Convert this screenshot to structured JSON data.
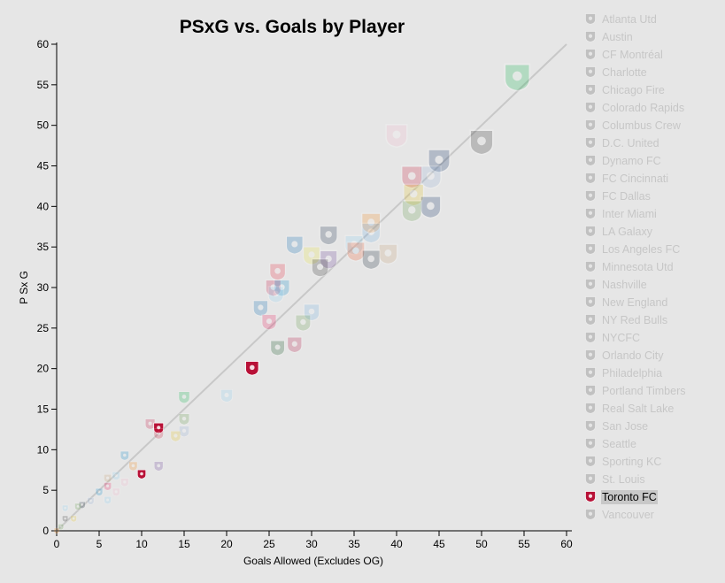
{
  "chart_data": {
    "type": "scatter",
    "title": "PSxG vs. Goals by Player",
    "xlabel": "Goals Allowed (Excludes OG)",
    "ylabel": "P Sx G",
    "xlim": [
      0,
      60
    ],
    "ylim": [
      0,
      60
    ],
    "xticks": [
      0,
      5,
      10,
      15,
      20,
      25,
      30,
      35,
      40,
      45,
      50,
      55,
      60
    ],
    "yticks": [
      0,
      5,
      10,
      15,
      20,
      25,
      30,
      35,
      40,
      45,
      50,
      55,
      60
    ],
    "reference_line": "y = x",
    "highlighted_team": "Toronto FC",
    "legend_position": "right",
    "legend": [
      {
        "team": "Atlanta Utd",
        "color": "#9a1a2a"
      },
      {
        "team": "Austin",
        "color": "#00b140"
      },
      {
        "team": "CF Montréal",
        "color": "#1c3f94"
      },
      {
        "team": "Charlotte",
        "color": "#0085ca"
      },
      {
        "team": "Chicago Fire",
        "color": "#c8102e"
      },
      {
        "team": "Colorado Rapids",
        "color": "#862633"
      },
      {
        "team": "Columbus Crew",
        "color": "#e8c31a"
      },
      {
        "team": "D.C. United",
        "color": "#222222"
      },
      {
        "team": "Dynamo FC",
        "color": "#f68712"
      },
      {
        "team": "FC Cincinnati",
        "color": "#f05323"
      },
      {
        "team": "FC Dallas",
        "color": "#c6093b"
      },
      {
        "team": "Inter Miami",
        "color": "#f7b5cd"
      },
      {
        "team": "LA Galaxy",
        "color": "#00245d"
      },
      {
        "team": "Los Angeles FC",
        "color": "#c39e6d"
      },
      {
        "team": "Minnesota Utd",
        "color": "#8cd2f4"
      },
      {
        "team": "Nashville",
        "color": "#ece83a"
      },
      {
        "team": "New England",
        "color": "#0a2240"
      },
      {
        "team": "NY Red Bulls",
        "color": "#ed1e36"
      },
      {
        "team": "NYCFC",
        "color": "#6cace4"
      },
      {
        "team": "Orlando City",
        "color": "#633492"
      },
      {
        "team": "Philadelphia",
        "color": "#071b2c"
      },
      {
        "team": "Portland Timbers",
        "color": "#004812"
      },
      {
        "team": "Real Salt Lake",
        "color": "#b30838"
      },
      {
        "team": "San Jose",
        "color": "#0067b1"
      },
      {
        "team": "Seattle",
        "color": "#5d9741"
      },
      {
        "team": "Sporting KC",
        "color": "#91b0d5"
      },
      {
        "team": "St. Louis",
        "color": "#ec1458"
      },
      {
        "team": "Toronto FC",
        "color": "#b81137"
      },
      {
        "team": "Vancouver",
        "color": "#00245e"
      }
    ],
    "points": [
      {
        "team": "Austin",
        "x": 54.2,
        "y": 56.0
      },
      {
        "team": "Inter Miami",
        "x": 40.0,
        "y": 48.8
      },
      {
        "team": "D.C. United",
        "x": 50.0,
        "y": 48.0
      },
      {
        "team": "Vancouver",
        "x": 45.0,
        "y": 45.7
      },
      {
        "team": "Sporting KC",
        "x": 44.0,
        "y": 43.7
      },
      {
        "team": "Chicago Fire",
        "x": 41.8,
        "y": 43.7
      },
      {
        "team": "Columbus Crew",
        "x": 42.0,
        "y": 41.5
      },
      {
        "team": "LA Galaxy",
        "x": 44.0,
        "y": 40.0
      },
      {
        "team": "Seattle",
        "x": 41.8,
        "y": 39.5
      },
      {
        "team": "Dynamo FC",
        "x": 37.0,
        "y": 38.0
      },
      {
        "team": "NYCFC",
        "x": 37.0,
        "y": 36.8
      },
      {
        "team": "New England",
        "x": 32.0,
        "y": 36.5
      },
      {
        "team": "Minnesota Utd",
        "x": 35.0,
        "y": 35.3
      },
      {
        "team": "San Jose",
        "x": 28.0,
        "y": 35.3
      },
      {
        "team": "FC Cincinnati",
        "x": 35.2,
        "y": 34.5
      },
      {
        "team": "Los Angeles FC",
        "x": 39.0,
        "y": 34.2
      },
      {
        "team": "Nashville",
        "x": 30.0,
        "y": 34.0
      },
      {
        "team": "Orlando City",
        "x": 32.0,
        "y": 33.5
      },
      {
        "team": "Philadelphia",
        "x": 37.0,
        "y": 33.5
      },
      {
        "team": "D.C. United",
        "x": 31.0,
        "y": 32.5
      },
      {
        "team": "NY Red Bulls",
        "x": 26.0,
        "y": 32.0
      },
      {
        "team": "FC Dallas",
        "x": 25.5,
        "y": 30.0
      },
      {
        "team": "Charlotte",
        "x": 26.5,
        "y": 30.0
      },
      {
        "team": "Minnesota Utd",
        "x": 25.8,
        "y": 29.2
      },
      {
        "team": "San Jose",
        "x": 24.0,
        "y": 27.5
      },
      {
        "team": "NYCFC",
        "x": 30.0,
        "y": 27.0
      },
      {
        "team": "Seattle",
        "x": 29.0,
        "y": 25.7
      },
      {
        "team": "St. Louis",
        "x": 25.0,
        "y": 25.8
      },
      {
        "team": "Portland Timbers",
        "x": 26.0,
        "y": 22.6
      },
      {
        "team": "Real Salt Lake",
        "x": 28.0,
        "y": 23.0
      },
      {
        "team": "Toronto FC",
        "x": 23.0,
        "y": 20.1
      },
      {
        "team": "Minnesota Utd",
        "x": 20.0,
        "y": 16.7
      },
      {
        "team": "Austin",
        "x": 15.0,
        "y": 16.5
      },
      {
        "team": "Seattle",
        "x": 15.0,
        "y": 13.8
      },
      {
        "team": "FC Dallas",
        "x": 11.0,
        "y": 13.2
      },
      {
        "team": "Toronto FC",
        "x": 12.0,
        "y": 12.7
      },
      {
        "team": "Sporting KC",
        "x": 15.0,
        "y": 12.3
      },
      {
        "team": "Chicago Fire",
        "x": 12.0,
        "y": 12.0
      },
      {
        "team": "Columbus Crew",
        "x": 14.0,
        "y": 11.7
      },
      {
        "team": "Charlotte",
        "x": 8.0,
        "y": 9.3
      },
      {
        "team": "Orlando City",
        "x": 12.0,
        "y": 8.0
      },
      {
        "team": "Dynamo FC",
        "x": 9.0,
        "y": 8.0
      },
      {
        "team": "Toronto FC",
        "x": 10.0,
        "y": 7.0
      },
      {
        "team": "Los Angeles FC",
        "x": 6.0,
        "y": 6.5
      },
      {
        "team": "Minnesota Utd",
        "x": 7.0,
        "y": 6.8
      },
      {
        "team": "Inter Miami",
        "x": 8.0,
        "y": 6.0
      },
      {
        "team": "St. Louis",
        "x": 6.0,
        "y": 5.5
      },
      {
        "team": "Inter Miami",
        "x": 7.0,
        "y": 4.8
      },
      {
        "team": "Minnesota Utd",
        "x": 6.0,
        "y": 3.8
      },
      {
        "team": "Charlotte",
        "x": 5.0,
        "y": 4.8
      },
      {
        "team": "Sporting KC",
        "x": 4.0,
        "y": 3.7
      },
      {
        "team": "Philadelphia",
        "x": 3.0,
        "y": 3.2
      },
      {
        "team": "Seattle",
        "x": 2.5,
        "y": 3.0
      },
      {
        "team": "Minnesota Utd",
        "x": 1.0,
        "y": 2.8
      },
      {
        "team": "Columbus Crew",
        "x": 2.0,
        "y": 1.5
      },
      {
        "team": "D.C. United",
        "x": 1.0,
        "y": 1.5
      },
      {
        "team": "Seattle",
        "x": 0.5,
        "y": 0.5
      },
      {
        "team": "Dynamo FC",
        "x": 0.0,
        "y": 0.0
      }
    ]
  }
}
